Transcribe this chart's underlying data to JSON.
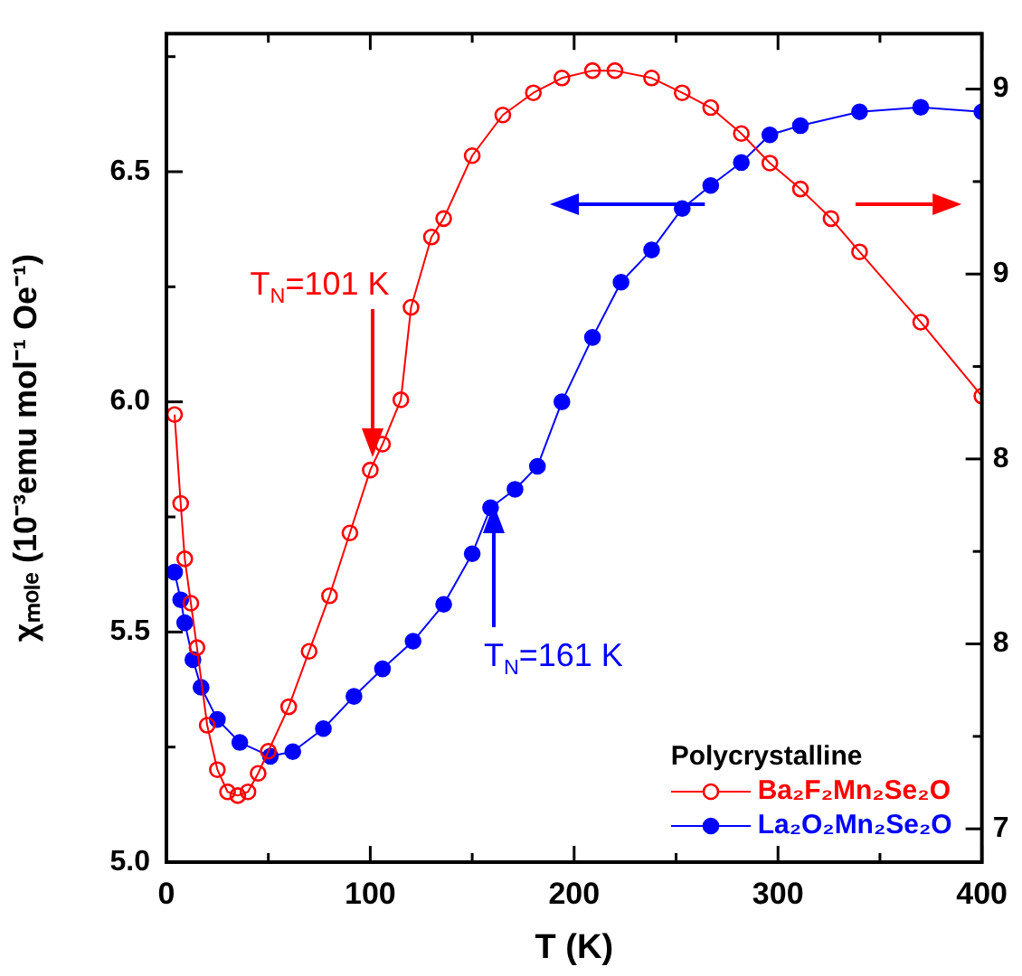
{
  "chart_data": {
    "type": "line",
    "xlabel": "T (K)",
    "ylabel": "χₘₒₗₑ (10⁻³emu mol⁻¹ Oe⁻¹)",
    "legend_title": "Polycrystalline",
    "xlim": [
      0,
      400
    ],
    "xticks": [
      0,
      {
        "value": 50,
        "label": null
      },
      100,
      {
        "value": 150,
        "label": null
      },
      200,
      {
        "value": 250,
        "label": null
      },
      300,
      {
        "value": 350,
        "label": null
      },
      400
    ],
    "ylim": [
      5.0,
      6.8
    ],
    "yticks": [
      {
        "value": 5.0,
        "label": "5.0"
      },
      {
        "value": 5.25,
        "label": null
      },
      5.5,
      {
        "value": 5.75,
        "label": null
      },
      {
        "value": 6.0,
        "label": "6.0"
      },
      {
        "value": 6.25,
        "label": null
      },
      6.5,
      {
        "value": 6.75,
        "label": null
      }
    ],
    "y2lim": [
      7.41,
      9.65
    ],
    "y2ticks": [
      {
        "value": 7.5,
        "label": "7"
      },
      {
        "value": 7.75,
        "label": null
      },
      {
        "value": 8.0,
        "label": "8"
      },
      {
        "value": 8.25,
        "label": null
      },
      {
        "value": 8.5,
        "label": "8"
      },
      {
        "value": 8.75,
        "label": null
      },
      {
        "value": 9.0,
        "label": "9"
      },
      {
        "value": 9.25,
        "label": null
      },
      {
        "value": 9.5,
        "label": "9"
      }
    ],
    "marker": "circle",
    "line_style": "solid",
    "legend": "bottom right",
    "annotations": [
      "T$_{N}$=101 K",
      "T$_{N}$=161 K"
    ],
    "series": [
      {
        "name": "Ba₂F₂Mn₂Se₂O",
        "color": "#ff0000",
        "axis": "y2",
        "x": [
          4,
          7,
          9,
          12,
          15,
          20,
          25,
          30,
          35,
          40,
          45,
          50,
          60,
          70,
          80,
          90,
          100,
          106,
          115,
          120,
          130,
          136,
          150,
          165,
          180,
          194,
          209,
          220,
          238,
          253,
          267,
          282,
          296,
          311,
          326,
          340,
          370,
          400
        ],
        "values": [
          8.62,
          8.38,
          8.23,
          8.11,
          7.99,
          7.78,
          7.66,
          7.6,
          7.59,
          7.6,
          7.65,
          7.71,
          7.83,
          7.98,
          8.13,
          8.3,
          8.47,
          8.54,
          8.66,
          8.91,
          9.1,
          9.15,
          9.32,
          9.43,
          9.49,
          9.53,
          9.55,
          9.55,
          9.53,
          9.49,
          9.45,
          9.38,
          9.3,
          9.23,
          9.15,
          9.06,
          8.87,
          8.67
        ]
      },
      {
        "name": "La₂O₂Mn₂Se₂O",
        "color": "#0000ff",
        "x": [
          4,
          7,
          9,
          13,
          17,
          25,
          36,
          51,
          62,
          77,
          92,
          106,
          121,
          136,
          150,
          159,
          171,
          182,
          194,
          209,
          223,
          238,
          253,
          267,
          282,
          296,
          311,
          340,
          370,
          400
        ],
        "values": [
          5.63,
          5.57,
          5.52,
          5.44,
          5.38,
          5.31,
          5.26,
          5.23,
          5.24,
          5.29,
          5.36,
          5.42,
          5.48,
          5.56,
          5.67,
          5.77,
          5.81,
          5.86,
          6.0,
          6.14,
          6.26,
          6.33,
          6.42,
          6.47,
          6.52,
          6.58,
          6.6,
          6.63,
          6.64,
          6.63
        ]
      }
    ]
  }
}
